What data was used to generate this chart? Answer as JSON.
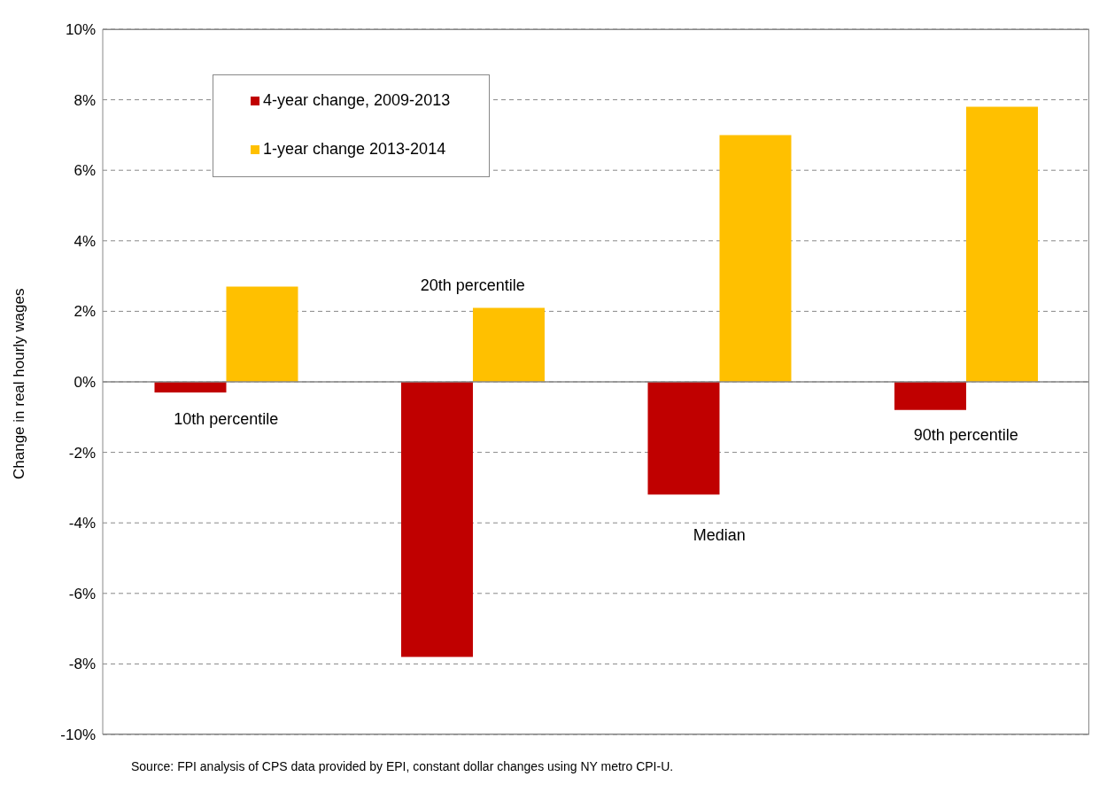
{
  "chart_data": {
    "type": "bar",
    "ylabel": "Change in real hourly wages",
    "categories": [
      "10th percentile",
      "20th percentile",
      "Median",
      "90th percentile"
    ],
    "series": [
      {
        "name": "4-year change, 2009-2013",
        "color": "#c00000",
        "values": [
          -0.3,
          -7.8,
          -3.2,
          -0.8
        ]
      },
      {
        "name": "1-year change 2013-2014",
        "color": "#ffc000",
        "values": [
          2.7,
          2.1,
          7.0,
          7.8
        ]
      }
    ],
    "ylim": [
      -10,
      10
    ],
    "yticks": [
      {
        "value": -10,
        "label": "-10%"
      },
      {
        "value": -8,
        "label": "-8%"
      },
      {
        "value": -6,
        "label": "-6%"
      },
      {
        "value": -4,
        "label": "-4%"
      },
      {
        "value": -2,
        "label": "-2%"
      },
      {
        "value": 0,
        "label": "0%"
      },
      {
        "value": 2,
        "label": "2%"
      },
      {
        "value": 4,
        "label": "4%"
      },
      {
        "value": 6,
        "label": "6%"
      },
      {
        "value": 8,
        "label": "8%"
      },
      {
        "value": 10,
        "label": "10%"
      }
    ],
    "grid": "y",
    "legend": "top left",
    "annotations": [
      "Source: FPI analysis of CPS data provided by EPI, constant dollar changes using NY metro CPI-U."
    ]
  }
}
